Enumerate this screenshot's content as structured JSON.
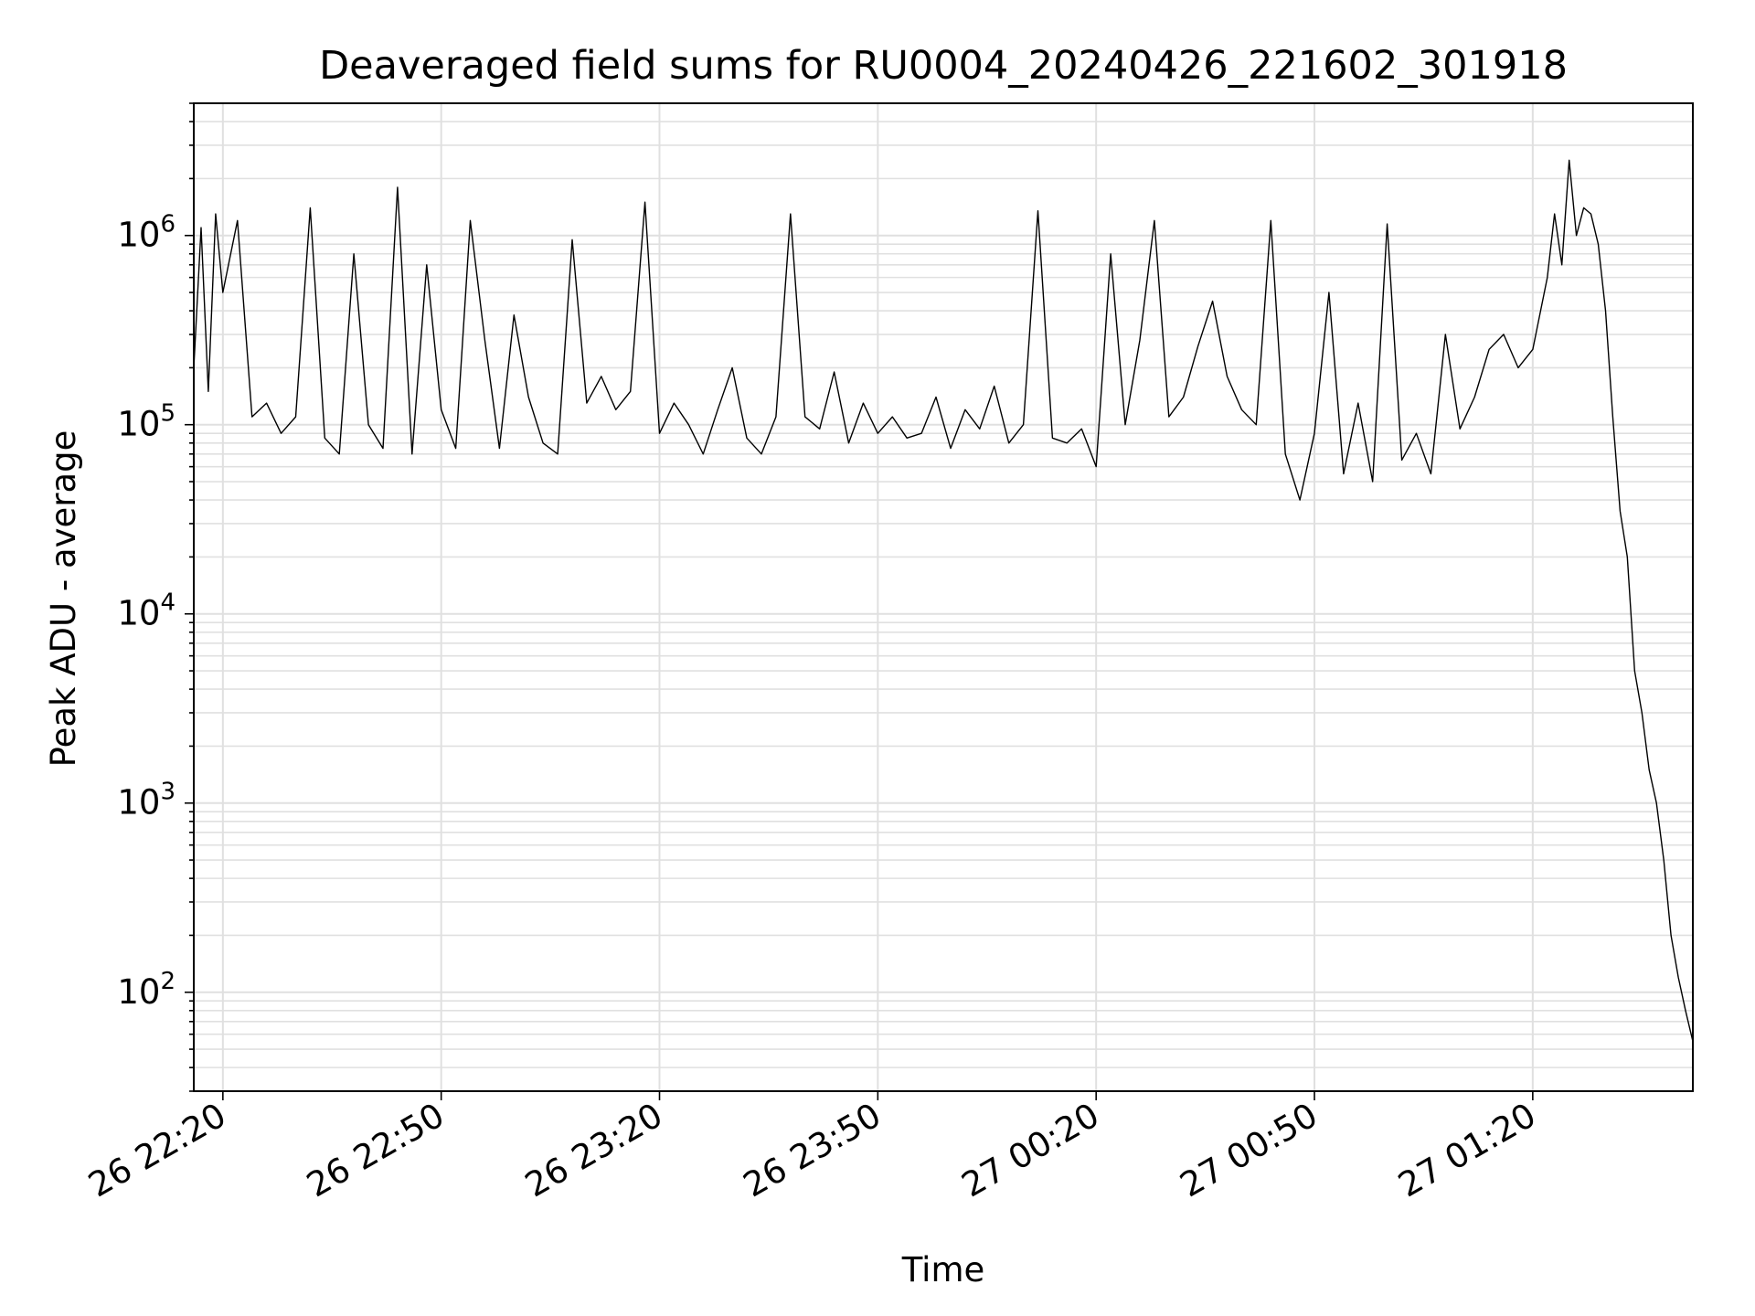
{
  "chart_data": {
    "type": "line",
    "title": "Deaveraged field sums for RU0004_20240426_221602_301918",
    "xlabel": "Time",
    "ylabel": "Peak ADU - average",
    "yscale": "log",
    "ylim": [
      30,
      5000000
    ],
    "xlim": [
      "2024-04-26 22:16",
      "2024-04-27 01:42"
    ],
    "x_ticks": [
      {
        "value": "2024-04-26 22:20",
        "label": "26 22:20"
      },
      {
        "value": "2024-04-26 22:50",
        "label": "26 22:50"
      },
      {
        "value": "2024-04-26 23:20",
        "label": "26 23:20"
      },
      {
        "value": "2024-04-26 23:50",
        "label": "26 23:50"
      },
      {
        "value": "2024-04-27 00:20",
        "label": "27 00:20"
      },
      {
        "value": "2024-04-27 00:50",
        "label": "27 00:50"
      },
      {
        "value": "2024-04-27 01:20",
        "label": "27 01:20"
      }
    ],
    "y_ticks": [
      {
        "value": 100,
        "base": "10",
        "exp": "2"
      },
      {
        "value": 1000,
        "base": "10",
        "exp": "3"
      },
      {
        "value": 10000,
        "base": "10",
        "exp": "4"
      },
      {
        "value": 100000,
        "base": "10",
        "exp": "5"
      },
      {
        "value": 1000000,
        "base": "10",
        "exp": "6"
      }
    ],
    "grid": true,
    "line_color": "#000000",
    "grid_color": "#e0e0e0",
    "series": [
      {
        "x": [
          "2024-04-26 22:16",
          "2024-04-26 22:17",
          "2024-04-26 22:18",
          "2024-04-26 22:19",
          "2024-04-26 22:20",
          "2024-04-26 22:22",
          "2024-04-26 22:24",
          "2024-04-26 22:26",
          "2024-04-26 22:28",
          "2024-04-26 22:30",
          "2024-04-26 22:32",
          "2024-04-26 22:34",
          "2024-04-26 22:36",
          "2024-04-26 22:38",
          "2024-04-26 22:40",
          "2024-04-26 22:42",
          "2024-04-26 22:44",
          "2024-04-26 22:46",
          "2024-04-26 22:48",
          "2024-04-26 22:50",
          "2024-04-26 22:52",
          "2024-04-26 22:54",
          "2024-04-26 22:56",
          "2024-04-26 22:58",
          "2024-04-26 23:00",
          "2024-04-26 23:02",
          "2024-04-26 23:04",
          "2024-04-26 23:06",
          "2024-04-26 23:08",
          "2024-04-26 23:10",
          "2024-04-26 23:12",
          "2024-04-26 23:14",
          "2024-04-26 23:16",
          "2024-04-26 23:18",
          "2024-04-26 23:20",
          "2024-04-26 23:22",
          "2024-04-26 23:24",
          "2024-04-26 23:26",
          "2024-04-26 23:28",
          "2024-04-26 23:30",
          "2024-04-26 23:32",
          "2024-04-26 23:34",
          "2024-04-26 23:36",
          "2024-04-26 23:38",
          "2024-04-26 23:40",
          "2024-04-26 23:42",
          "2024-04-26 23:44",
          "2024-04-26 23:46",
          "2024-04-26 23:48",
          "2024-04-26 23:50",
          "2024-04-26 23:52",
          "2024-04-26 23:54",
          "2024-04-26 23:56",
          "2024-04-26 23:58",
          "2024-04-27 00:00",
          "2024-04-27 00:02",
          "2024-04-27 00:04",
          "2024-04-27 00:06",
          "2024-04-27 00:08",
          "2024-04-27 00:10",
          "2024-04-27 00:12",
          "2024-04-27 00:14",
          "2024-04-27 00:16",
          "2024-04-27 00:18",
          "2024-04-27 00:20",
          "2024-04-27 00:22",
          "2024-04-27 00:24",
          "2024-04-27 00:26",
          "2024-04-27 00:28",
          "2024-04-27 00:30",
          "2024-04-27 00:32",
          "2024-04-27 00:34",
          "2024-04-27 00:36",
          "2024-04-27 00:38",
          "2024-04-27 00:40",
          "2024-04-27 00:42",
          "2024-04-27 00:44",
          "2024-04-27 00:46",
          "2024-04-27 00:48",
          "2024-04-27 00:50",
          "2024-04-27 00:52",
          "2024-04-27 00:54",
          "2024-04-27 00:56",
          "2024-04-27 00:58",
          "2024-04-27 01:00",
          "2024-04-27 01:02",
          "2024-04-27 01:04",
          "2024-04-27 01:06",
          "2024-04-27 01:08",
          "2024-04-27 01:10",
          "2024-04-27 01:12",
          "2024-04-27 01:14",
          "2024-04-27 01:16",
          "2024-04-27 01:18",
          "2024-04-27 01:20",
          "2024-04-27 01:22",
          "2024-04-27 01:23",
          "2024-04-27 01:24",
          "2024-04-27 01:25",
          "2024-04-27 01:26",
          "2024-04-27 01:27",
          "2024-04-27 01:28",
          "2024-04-27 01:29",
          "2024-04-27 01:30",
          "2024-04-27 01:31",
          "2024-04-27 01:32",
          "2024-04-27 01:33",
          "2024-04-27 01:34",
          "2024-04-27 01:35",
          "2024-04-27 01:36",
          "2024-04-27 01:37",
          "2024-04-27 01:38",
          "2024-04-27 01:39",
          "2024-04-27 01:40",
          "2024-04-27 01:41",
          "2024-04-27 01:42"
        ],
        "y": [
          200000,
          1100000,
          150000,
          1300000,
          500000,
          1200000,
          110000,
          130000,
          90000,
          110000,
          1400000,
          85000,
          70000,
          800000,
          100000,
          75000,
          1800000,
          70000,
          700000,
          120000,
          75000,
          1200000,
          280000,
          75000,
          380000,
          140000,
          80000,
          70000,
          950000,
          130000,
          180000,
          120000,
          150000,
          1500000,
          90000,
          130000,
          100000,
          70000,
          120000,
          200000,
          85000,
          70000,
          110000,
          1300000,
          110000,
          95000,
          190000,
          80000,
          130000,
          90000,
          110000,
          85000,
          90000,
          140000,
          75000,
          120000,
          95000,
          160000,
          80000,
          100000,
          1350000,
          85000,
          80000,
          95000,
          60000,
          800000,
          100000,
          280000,
          1200000,
          110000,
          140000,
          260000,
          450000,
          180000,
          120000,
          100000,
          1200000,
          70000,
          40000,
          90000,
          500000,
          55000,
          130000,
          50000,
          1150000,
          65000,
          90000,
          55000,
          300000,
          95000,
          140000,
          250000,
          300000,
          200000,
          250000,
          600000,
          1300000,
          700000,
          2500000,
          1000000,
          1400000,
          1300000,
          900000,
          400000,
          110000,
          35000,
          20000,
          5000,
          3000,
          1500,
          1000,
          500,
          200,
          120,
          80,
          55
        ]
      }
    ]
  }
}
